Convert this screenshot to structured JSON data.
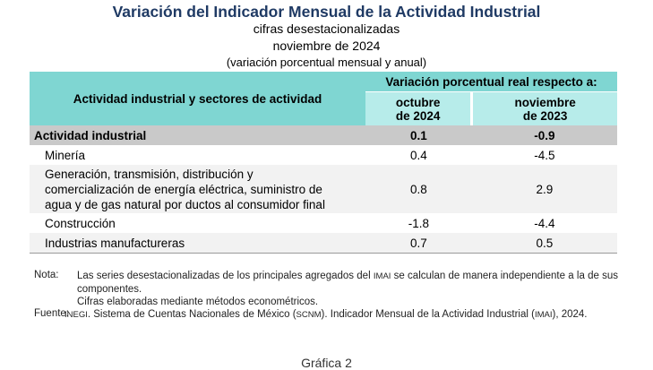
{
  "header": {
    "title": "Variación del Indicador Mensual de la Actividad Industrial",
    "subtitle1": "cifras desestacionalizadas",
    "subtitle2": "noviembre de 2024",
    "subtitle3": "(variación porcentual mensual y anual)"
  },
  "table": {
    "col_left": "Actividad industrial y sectores de actividad",
    "col_group": "Variación porcentual real respecto a:",
    "col1_line1": "octubre",
    "col1_line2": "de 2024",
    "col2_line1": "noviembre",
    "col2_line2": "de 2023",
    "rows": [
      {
        "label": "Actividad industrial",
        "v1": "0.1",
        "v2": "-0.9"
      },
      {
        "label": "Minería",
        "v1": "0.4",
        "v2": "-4.5"
      },
      {
        "label_line1": "Generación, transmisión, distribución y",
        "label_line2": "comercialización de energía eléctrica, suministro de",
        "label_line3": "agua y de gas natural por ductos al consumidor final",
        "v1": "0.8",
        "v2": "2.9"
      },
      {
        "label": "Construcción",
        "v1": "-1.8",
        "v2": "-4.4"
      },
      {
        "label": "Industrias manufactureras",
        "v1": "0.7",
        "v2": "0.5"
      }
    ]
  },
  "notes": {
    "nota_label": "Nota:",
    "nota_text_a": "Las series desestacionalizadas de los principales agregados del",
    "nota_text_imai": "IMAI",
    "nota_text_b": "se calculan de manera independiente a la de sus componentes.",
    "nota_text2": "Cifras elaboradas mediante métodos econométricos.",
    "fuente_label": "Fuente:",
    "fuente_inegi": "INEGI",
    "fuente_text_a": ". Sistema de Cuentas Nacionales de México (",
    "fuente_scnm": "SCNM",
    "fuente_text_b": "). Indicador Mensual de la Actividad Industrial (",
    "fuente_imai": "IMAI",
    "fuente_text_c": "), 2024."
  },
  "footer": {
    "next_caption": "Gráfica 2"
  }
}
